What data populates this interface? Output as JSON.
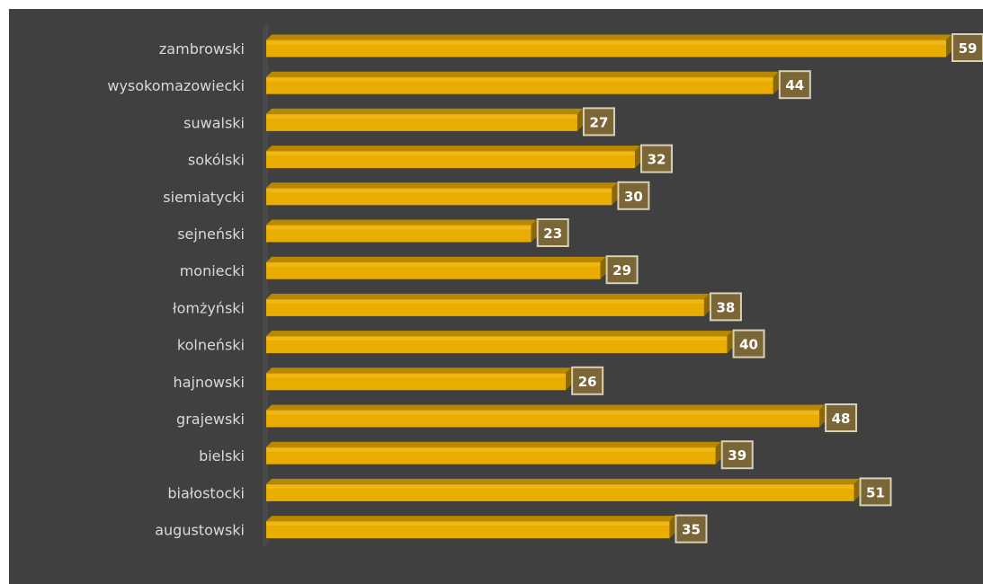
{
  "chart_data": {
    "type": "bar",
    "orientation": "horizontal",
    "style": "3d",
    "categories": [
      "zambrowski",
      "wysokomazowiecki",
      "suwalski",
      "sokólski",
      "siemiatycki",
      "sejneński",
      "moniecki",
      "łomżyński",
      "kolneński",
      "hajnowski",
      "grajewski",
      "bielski",
      "białostocki",
      "augustowski"
    ],
    "values": [
      59,
      44,
      27,
      32,
      30,
      23,
      29,
      38,
      40,
      26,
      48,
      39,
      51,
      35
    ],
    "xlim": [
      0,
      59
    ],
    "grid": false,
    "legend": "none",
    "data_labels": true,
    "colors": {
      "background": "#404040",
      "bar": "#e8ad00",
      "bar_top": "#b88800",
      "bar_side": "#8c6800",
      "label_box": "#7a6637",
      "label_border": "#d9d0b8",
      "label_text": "#ffffff",
      "category_text": "#d9d9d9"
    }
  }
}
